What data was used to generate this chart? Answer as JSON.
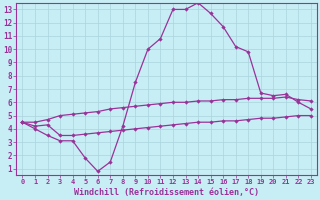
{
  "background_color": "#c8eef5",
  "grid_color": "#aad4dd",
  "line_color": "#993399",
  "xlabel": "Windchill (Refroidissement éolien,°C)",
  "yticks": [
    1,
    2,
    3,
    4,
    5,
    6,
    7,
    8,
    9,
    10,
    11,
    12,
    13
  ],
  "xticks": [
    0,
    1,
    2,
    3,
    4,
    5,
    6,
    7,
    8,
    9,
    10,
    11,
    12,
    13,
    14,
    15,
    16,
    17,
    18,
    19,
    20,
    21,
    22,
    23
  ],
  "xlim": [
    -0.5,
    23.5
  ],
  "ylim": [
    0.5,
    13.5
  ],
  "peak_line": [
    4.5,
    4.0,
    3.5,
    3.1,
    3.1,
    1.8,
    0.8,
    1.5,
    4.2,
    7.5,
    10.0,
    10.8,
    13.0,
    13.0,
    13.5,
    12.7,
    11.7,
    10.2,
    9.8,
    6.7,
    6.5,
    6.6,
    6.0,
    5.5
  ],
  "upper_line": [
    4.5,
    4.5,
    4.7,
    5.0,
    5.1,
    5.2,
    5.3,
    5.5,
    5.6,
    5.7,
    5.8,
    5.9,
    6.0,
    6.0,
    6.1,
    6.1,
    6.2,
    6.2,
    6.3,
    6.3,
    6.3,
    6.4,
    6.2,
    6.1
  ],
  "lower_line": [
    4.5,
    4.2,
    4.3,
    3.5,
    3.5,
    3.6,
    3.7,
    3.8,
    3.9,
    4.0,
    4.1,
    4.2,
    4.3,
    4.4,
    4.5,
    4.5,
    4.6,
    4.6,
    4.7,
    4.8,
    4.8,
    4.9,
    5.0,
    5.0
  ]
}
